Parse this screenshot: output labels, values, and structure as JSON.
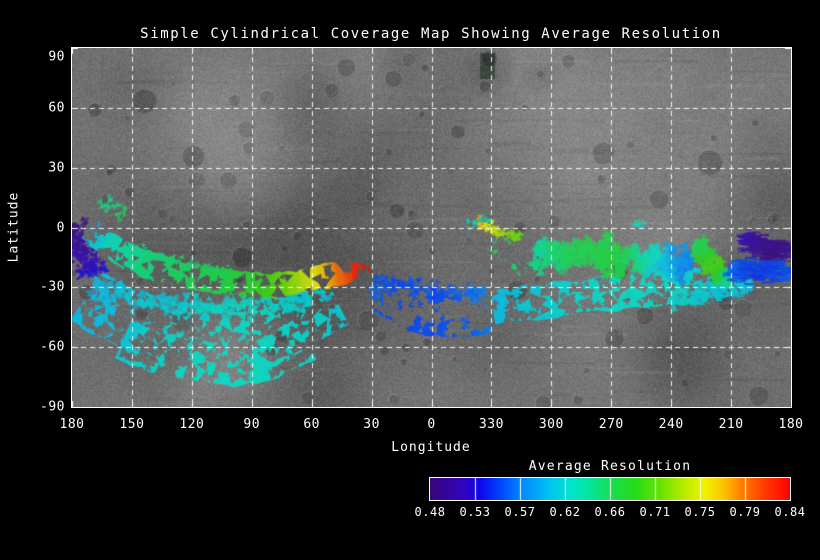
{
  "chart_data": {
    "type": "heatmap",
    "subtype": "cylindrical-coverage-map-on-grayscale-basemap",
    "title": "Simple Cylindrical Coverage Map Showing Average Resolution",
    "xlabel": "Longitude",
    "ylabel": "Latitude",
    "x_tick_labels": [
      "180",
      "150",
      "120",
      "90",
      "60",
      "30",
      "0",
      "330",
      "300",
      "270",
      "240",
      "210",
      "180"
    ],
    "y_tick_labels": [
      "90",
      "60",
      "30",
      "0",
      "-30",
      "-60",
      "-90"
    ],
    "lon_span_deg": 360,
    "lat_range": [
      90,
      -90
    ],
    "grid": {
      "step_deg": 30,
      "style": "dashed-white",
      "on": true
    },
    "basemap": "grayscale asteroid mosaic",
    "colorbar": {
      "title": "Average Resolution",
      "min": 0.48,
      "max": 0.84,
      "tick_labels": [
        "0.48",
        "0.53",
        "0.57",
        "0.62",
        "0.66",
        "0.71",
        "0.75",
        "0.79",
        "0.84"
      ],
      "segments": 8,
      "stops": [
        {
          "v": 0.48,
          "c": "#38077A"
        },
        {
          "v": 0.515,
          "c": "#3104C4"
        },
        {
          "v": 0.53,
          "c": "#0D07EE"
        },
        {
          "v": 0.555,
          "c": "#0054FF"
        },
        {
          "v": 0.57,
          "c": "#0084FF"
        },
        {
          "v": 0.6,
          "c": "#00C4F2"
        },
        {
          "v": 0.62,
          "c": "#00E5CE"
        },
        {
          "v": 0.64,
          "c": "#06E59C"
        },
        {
          "v": 0.66,
          "c": "#17DE54"
        },
        {
          "v": 0.685,
          "c": "#27DB1C"
        },
        {
          "v": 0.71,
          "c": "#67E300"
        },
        {
          "v": 0.735,
          "c": "#BCEC00"
        },
        {
          "v": 0.755,
          "c": "#F2F200"
        },
        {
          "v": 0.775,
          "c": "#FFBE00"
        },
        {
          "v": 0.79,
          "c": "#FF8400"
        },
        {
          "v": 0.815,
          "c": "#FF3A00"
        },
        {
          "v": 0.84,
          "c": "#FF0000"
        }
      ]
    },
    "coverage_note": "pts are [x_deg_from_left_edge, latitude_deg, avg_resolution]; longitude = 180 - x (wrapping 0/360)",
    "coverage_bands": [
      {
        "name": "south-field",
        "mode": "solid",
        "hw": 14,
        "holes": 430,
        "pts": [
          [
            8,
            -34,
            0.6
          ],
          [
            18,
            -41,
            0.603
          ],
          [
            30,
            -46,
            0.607
          ],
          [
            44,
            -50,
            0.612
          ],
          [
            60,
            -53,
            0.617
          ],
          [
            78,
            -54,
            0.62
          ],
          [
            96,
            -51,
            0.62
          ],
          [
            110,
            -46,
            0.617
          ],
          [
            122,
            -41,
            0.613
          ],
          [
            132,
            -36,
            0.61
          ]
        ]
      },
      {
        "name": "south-deep",
        "mode": "solid",
        "hw": 10,
        "holes": 150,
        "pts": [
          [
            26,
            -56,
            0.61
          ],
          [
            40,
            -62,
            0.615
          ],
          [
            56,
            -66,
            0.62
          ],
          [
            74,
            -68,
            0.62
          ],
          [
            92,
            -68,
            0.62
          ],
          [
            106,
            -62,
            0.618
          ],
          [
            116,
            -56,
            0.615
          ]
        ]
      },
      {
        "name": "south-upper-scatter",
        "mode": "scatter",
        "hw": 7,
        "n": 200,
        "size": [
          3,
          7
        ],
        "pts": [
          [
            10,
            -30,
            0.6
          ],
          [
            22,
            -33,
            0.603
          ],
          [
            36,
            -36,
            0.607
          ],
          [
            52,
            -38,
            0.612
          ],
          [
            70,
            -40,
            0.617
          ],
          [
            88,
            -40,
            0.62
          ],
          [
            104,
            -38,
            0.616
          ],
          [
            118,
            -34,
            0.612
          ],
          [
            130,
            -31,
            0.608
          ]
        ]
      },
      {
        "name": "west-purple-patch",
        "mode": "scatter",
        "hw": 9,
        "n": 300,
        "size": [
          2,
          4
        ],
        "pts": [
          [
            0,
            2,
            0.485
          ],
          [
            3,
            -6,
            0.495
          ],
          [
            6,
            -13,
            0.505
          ],
          [
            9,
            -19,
            0.515
          ],
          [
            11,
            -24,
            0.53
          ]
        ]
      },
      {
        "name": "gap-blue-speckles",
        "mode": "scatter",
        "hw": 5,
        "n": 70,
        "size": [
          2,
          4
        ],
        "pts": [
          [
            149,
            -29,
            0.565
          ],
          [
            154,
            -33,
            0.558
          ],
          [
            159,
            -38,
            0.552
          ],
          [
            164,
            -42,
            0.55
          ]
        ]
      },
      {
        "name": "mid-blue",
        "mode": "solid",
        "hw": 10,
        "holes": 160,
        "pts": [
          [
            156,
            -33,
            0.555
          ],
          [
            165,
            -38,
            0.551
          ],
          [
            175,
            -43,
            0.549
          ],
          [
            187,
            -45,
            0.552
          ],
          [
            198,
            -44,
            0.558
          ],
          [
            208,
            -42,
            0.57
          ]
        ]
      },
      {
        "name": "mid-blue-upper-speckle",
        "mode": "scatter",
        "hw": 5,
        "n": 140,
        "size": [
          2,
          5
        ],
        "pts": [
          [
            151,
            -27,
            0.557
          ],
          [
            161,
            -29,
            0.552
          ],
          [
            172,
            -31,
            0.552
          ],
          [
            184,
            -32,
            0.554
          ],
          [
            196,
            -33,
            0.56
          ],
          [
            207,
            -33,
            0.57
          ]
        ]
      },
      {
        "name": "right-cyan-band",
        "mode": "solid",
        "hw": 8,
        "holes": 130,
        "pts": [
          [
            211,
            -40,
            0.6
          ],
          [
            226,
            -38,
            0.608
          ],
          [
            242,
            -36,
            0.613
          ],
          [
            258,
            -34,
            0.618
          ],
          [
            274,
            -32.5,
            0.62
          ],
          [
            290,
            -31,
            0.62
          ],
          [
            306,
            -29.5,
            0.615
          ],
          [
            318,
            -28.5,
            0.61
          ],
          [
            328,
            -28,
            0.606
          ]
        ]
      },
      {
        "name": "right-cyan-tail-scatter",
        "mode": "scatter",
        "hw": 6,
        "n": 130,
        "size": [
          3,
          6
        ],
        "pts": [
          [
            300,
            -36,
            0.615
          ],
          [
            312,
            -34,
            0.611
          ],
          [
            322,
            -32,
            0.609
          ],
          [
            332,
            -30,
            0.607
          ],
          [
            340,
            -28,
            0.605
          ]
        ]
      },
      {
        "name": "green-335-blob",
        "mode": "solid",
        "hw": 5,
        "holes": 45,
        "pts": [
          [
            212,
            -7,
            0.665
          ],
          [
            217,
            -12,
            0.66
          ],
          [
            223,
            -17,
            0.655
          ],
          [
            229,
            -22,
            0.648
          ]
        ]
      },
      {
        "name": "bright-green-300",
        "mode": "solid",
        "hw": 5,
        "holes": 35,
        "pts": [
          [
            267,
            -5,
            0.665
          ],
          [
            271,
            -11,
            0.685
          ],
          [
            276,
            -17,
            0.69
          ],
          [
            280,
            -21,
            0.675
          ]
        ]
      },
      {
        "name": "upper-right-mixed",
        "mode": "scatter",
        "hw": 10,
        "n": 520,
        "size": [
          3,
          7
        ],
        "pts": [
          [
            231,
            -12,
            0.635
          ],
          [
            239,
            -16,
            0.648
          ],
          [
            247,
            -10,
            0.657
          ],
          [
            255,
            -16,
            0.662
          ],
          [
            263,
            -10,
            0.664
          ],
          [
            271,
            -15,
            0.668
          ],
          [
            279,
            -18,
            0.66
          ],
          [
            287,
            -14,
            0.632
          ],
          [
            295,
            -19,
            0.603
          ],
          [
            303,
            -16,
            0.582
          ],
          [
            310,
            -20,
            0.57
          ]
        ]
      },
      {
        "name": "green-cluster-215",
        "mode": "scatter",
        "hw": 6,
        "n": 220,
        "size": [
          2.5,
          5.5
        ],
        "pts": [
          [
            313,
            -8,
            0.66
          ],
          [
            317,
            -14,
            0.68
          ],
          [
            321,
            -20,
            0.7
          ],
          [
            326,
            -24,
            0.66
          ],
          [
            330,
            -28,
            0.63
          ]
        ]
      },
      {
        "name": "east-blue-streaks",
        "mode": "scatter",
        "shape": "dash",
        "hw": 7,
        "n": 260,
        "size": [
          2,
          5
        ],
        "pts": [
          [
            330,
            -20,
            0.56
          ],
          [
            337,
            -23,
            0.55
          ],
          [
            344,
            -20,
            0.545
          ],
          [
            351,
            -24,
            0.55
          ],
          [
            358,
            -20,
            0.553
          ]
        ]
      },
      {
        "name": "east-purple-streaks",
        "mode": "scatter",
        "shape": "dash",
        "hw": 6,
        "n": 300,
        "size": [
          2,
          4
        ],
        "pts": [
          [
            335,
            -6,
            0.515
          ],
          [
            341,
            -8,
            0.5
          ],
          [
            347,
            -10,
            0.49
          ],
          [
            353,
            -12,
            0.487
          ],
          [
            359,
            -11,
            0.49
          ]
        ]
      },
      {
        "name": "equator-yellow-330",
        "mode": "scatter",
        "hw": 3.5,
        "n": 70,
        "size": [
          2,
          4
        ],
        "pts": [
          [
            202,
            3,
            0.78
          ],
          [
            206,
            1,
            0.76
          ],
          [
            211,
            -1,
            0.745
          ],
          [
            217,
            -3,
            0.725
          ],
          [
            224,
            -5,
            0.705
          ]
        ]
      },
      {
        "name": "top-teal-flecks-335",
        "mode": "scatter",
        "hw": 2.5,
        "n": 24,
        "size": [
          1.5,
          3
        ],
        "pts": [
          [
            198,
            2,
            0.63
          ],
          [
            204,
            4,
            0.625
          ],
          [
            210,
            2,
            0.62
          ]
        ]
      },
      {
        "name": "top-teal-flecks-260",
        "mode": "scatter",
        "hw": 2,
        "n": 14,
        "size": [
          1.5,
          3
        ],
        "pts": [
          [
            281,
            1,
            0.63
          ],
          [
            286,
            2,
            0.62
          ]
        ]
      },
      {
        "name": "main-arc",
        "mode": "solid",
        "hw": 6,
        "holes": 80,
        "taper_end": true,
        "pts": [
          [
            9,
            -1,
            0.585
          ],
          [
            14,
            -6,
            0.61
          ],
          [
            20,
            -10,
            0.625
          ],
          [
            28,
            -15,
            0.64
          ],
          [
            38,
            -19,
            0.65
          ],
          [
            50,
            -23,
            0.655
          ],
          [
            62,
            -26,
            0.66
          ],
          [
            74,
            -27.5,
            0.665
          ],
          [
            86,
            -28.5,
            0.675
          ],
          [
            96,
            -29,
            0.69
          ],
          [
            104,
            -28.5,
            0.705
          ],
          [
            112,
            -27.5,
            0.725
          ],
          [
            120,
            -26,
            0.75
          ],
          [
            128,
            -24.5,
            0.775
          ],
          [
            136,
            -23,
            0.805
          ],
          [
            143,
            -21.5,
            0.83
          ],
          [
            149,
            -21,
            0.84
          ]
        ]
      },
      {
        "name": "main-arc-upper-flecks",
        "mode": "scatter",
        "hw": 4,
        "n": 90,
        "size": [
          2,
          5
        ],
        "pts": [
          [
            18,
            -5,
            0.628
          ],
          [
            28,
            -10,
            0.638
          ],
          [
            40,
            -14,
            0.648
          ],
          [
            54,
            -18,
            0.654
          ],
          [
            68,
            -21,
            0.66
          ],
          [
            80,
            -23,
            0.665
          ]
        ]
      },
      {
        "name": "west-green-flecks",
        "mode": "scatter",
        "hw": 5,
        "n": 26,
        "size": [
          2,
          4
        ],
        "pts": [
          [
            13,
            9,
            0.65
          ],
          [
            17,
            12,
            0.643
          ],
          [
            22,
            11,
            0.648
          ],
          [
            27,
            8,
            0.657
          ]
        ]
      }
    ]
  }
}
